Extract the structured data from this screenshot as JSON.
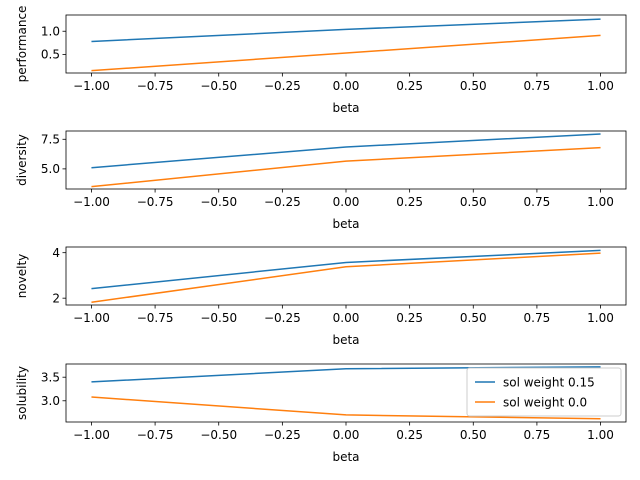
{
  "chart_data": [
    {
      "type": "line",
      "xlabel": "beta",
      "ylabel": "performance",
      "x": [
        -1.0,
        0.0,
        1.0
      ],
      "xlim": [
        -1.1,
        1.1
      ],
      "ylim": [
        0.1,
        1.35
      ],
      "xticks": [
        -1.0,
        -0.75,
        -0.5,
        -0.25,
        0.0,
        0.25,
        0.5,
        0.75,
        1.0
      ],
      "xtick_labels": [
        "−1.00",
        "−0.75",
        "−0.50",
        "−0.25",
        "0.00",
        "0.25",
        "0.50",
        "0.75",
        "1.00"
      ],
      "yticks": [
        0.5,
        1.0
      ],
      "ytick_labels": [
        "0.5",
        "1.0"
      ],
      "series": [
        {
          "values": [
            0.78,
            1.04,
            1.26
          ],
          "color": "#1f77b4"
        },
        {
          "values": [
            0.15,
            0.53,
            0.91
          ],
          "color": "#ff7f0e"
        }
      ]
    },
    {
      "type": "line",
      "xlabel": "beta",
      "ylabel": "diversity",
      "x": [
        -1.0,
        0.0,
        1.0
      ],
      "xlim": [
        -1.1,
        1.1
      ],
      "ylim": [
        3.3,
        8.2
      ],
      "xticks": [
        -1.0,
        -0.75,
        -0.5,
        -0.25,
        0.0,
        0.25,
        0.5,
        0.75,
        1.0
      ],
      "xtick_labels": [
        "−1.00",
        "−0.75",
        "−0.50",
        "−0.25",
        "0.00",
        "0.25",
        "0.50",
        "0.75",
        "1.00"
      ],
      "yticks": [
        5.0,
        7.5
      ],
      "ytick_labels": [
        "5.0",
        "7.5"
      ],
      "series": [
        {
          "values": [
            5.1,
            6.85,
            7.95
          ],
          "color": "#1f77b4"
        },
        {
          "values": [
            3.5,
            5.65,
            6.8
          ],
          "color": "#ff7f0e"
        }
      ]
    },
    {
      "type": "line",
      "xlabel": "beta",
      "ylabel": "novelty",
      "x": [
        -1.0,
        0.0,
        1.0
      ],
      "xlim": [
        -1.1,
        1.1
      ],
      "ylim": [
        1.7,
        4.25
      ],
      "xticks": [
        -1.0,
        -0.75,
        -0.5,
        -0.25,
        0.0,
        0.25,
        0.5,
        0.75,
        1.0
      ],
      "xtick_labels": [
        "−1.00",
        "−0.75",
        "−0.50",
        "−0.25",
        "0.00",
        "0.25",
        "0.50",
        "0.75",
        "1.00"
      ],
      "yticks": [
        2,
        4
      ],
      "ytick_labels": [
        "2",
        "4"
      ],
      "series": [
        {
          "values": [
            2.42,
            3.57,
            4.1
          ],
          "color": "#1f77b4"
        },
        {
          "values": [
            1.82,
            3.38,
            3.98
          ],
          "color": "#ff7f0e"
        }
      ]
    },
    {
      "type": "line",
      "xlabel": "beta",
      "ylabel": "solubility",
      "x": [
        -1.0,
        0.0,
        1.0
      ],
      "xlim": [
        -1.1,
        1.1
      ],
      "ylim": [
        2.55,
        3.78
      ],
      "xticks": [
        -1.0,
        -0.75,
        -0.5,
        -0.25,
        0.0,
        0.25,
        0.5,
        0.75,
        1.0
      ],
      "xtick_labels": [
        "−1.00",
        "−0.75",
        "−0.50",
        "−0.25",
        "0.00",
        "0.25",
        "0.50",
        "0.75",
        "1.00"
      ],
      "yticks": [
        3.0,
        3.5
      ],
      "ytick_labels": [
        "3.0",
        "3.5"
      ],
      "legend": "top-right",
      "series": [
        {
          "name": "sol weight 0.15",
          "values": [
            3.4,
            3.68,
            3.72
          ],
          "color": "#1f77b4"
        },
        {
          "name": "sol weight 0.0",
          "values": [
            3.08,
            2.7,
            2.62
          ],
          "color": "#ff7f0e"
        }
      ]
    }
  ]
}
